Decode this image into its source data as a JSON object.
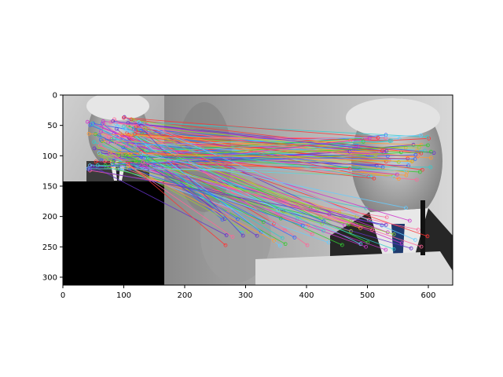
{
  "figure": {
    "x_ticks": [
      "0",
      "100",
      "200",
      "300",
      "400",
      "500",
      "600"
    ],
    "y_ticks": [
      "0",
      "50",
      "100",
      "150",
      "200",
      "250",
      "300"
    ],
    "x_range": [
      0,
      640
    ],
    "y_range": [
      313,
      0
    ],
    "background_color": "#ffffff",
    "axes_color": "#000000"
  },
  "image_panels": {
    "left_face_scale": "small",
    "right_face_scale": "large",
    "black_patch": "lower-left quadrant of left image",
    "palette": [
      "#ff3333",
      "#33cc33",
      "#3366ff",
      "#cc33cc",
      "#33cccc",
      "#ff9933",
      "#99cc33",
      "#6633cc",
      "#ff6699",
      "#66ccff"
    ]
  }
}
